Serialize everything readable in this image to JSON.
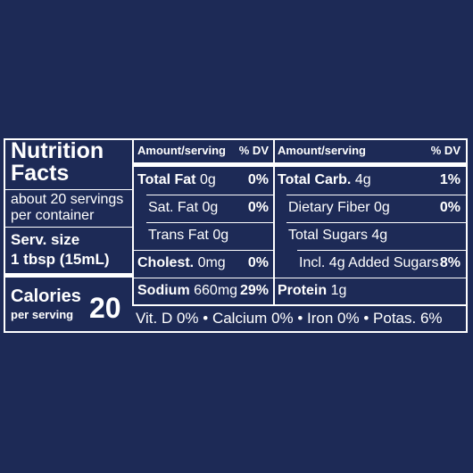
{
  "label": {
    "title": "Nutrition Facts",
    "servings": "about 20 servings per container",
    "serving_size_label": "Serv. size",
    "serving_size": "1 tbsp (15mL)",
    "calories_label": "Calories",
    "calories_sub": "per serving",
    "calories": "20",
    "columns": [
      {
        "header_amount": "Amount/serving",
        "header_dv": "% DV",
        "rows": [
          {
            "name": "Total Fat",
            "amount": "0g",
            "dv": "0%",
            "bold": true,
            "indent": false
          },
          {
            "name": "Sat. Fat",
            "amount": "0g",
            "dv": "0%",
            "bold": false,
            "indent": true
          },
          {
            "name": "Trans Fat",
            "amount": "0g",
            "bold": false,
            "indent": true
          },
          {
            "name": "Cholest.",
            "amount": "0mg",
            "dv": "0%",
            "bold": true,
            "indent": false
          },
          {
            "name": "Sodium",
            "amount": "660mg",
            "dv": "29%",
            "bold": true,
            "indent": false
          }
        ]
      },
      {
        "header_amount": "Amount/serving",
        "header_dv": "% DV",
        "rows": [
          {
            "name": "Total Carb.",
            "amount": "4g",
            "dv": "1%",
            "bold": true,
            "indent": false
          },
          {
            "name": "Dietary Fiber",
            "amount": "0g",
            "dv": "0%",
            "bold": false,
            "indent": true
          },
          {
            "name": "Total Sugars",
            "amount": "4g",
            "bold": false,
            "indent": true
          },
          {
            "name": "Incl. 4g Added Sugars",
            "dv": "8%",
            "bold": false,
            "indent": true,
            "double_indent": true
          },
          {
            "name": "Protein",
            "amount": "1g",
            "bold": true,
            "indent": false
          }
        ]
      }
    ],
    "vitamins": "Vit. D 0% • Calcium 0% • Iron 0% • Potas. 6%"
  }
}
